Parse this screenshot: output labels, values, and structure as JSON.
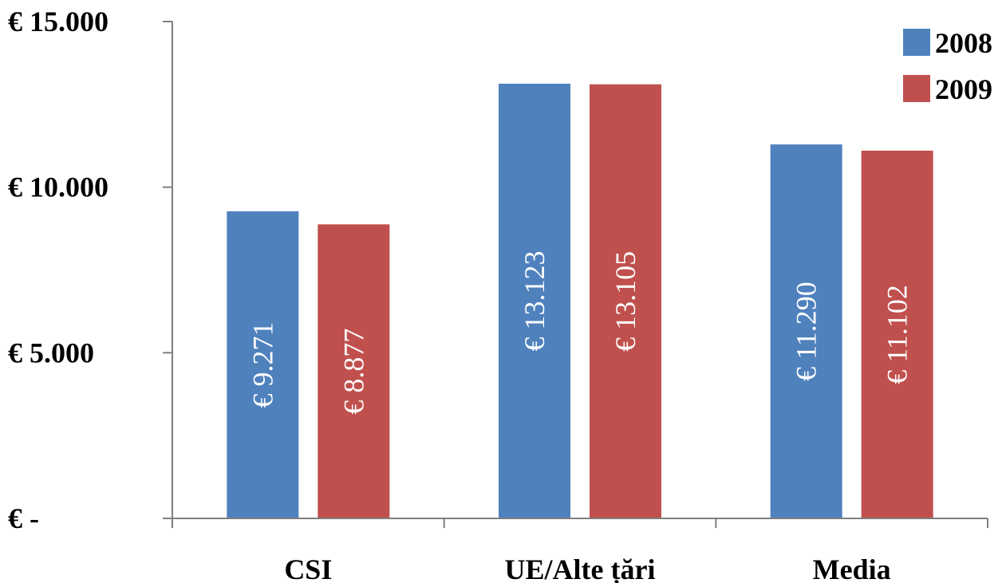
{
  "chart_data": {
    "type": "bar",
    "categories": [
      "CSI",
      "UE/Alte țări",
      "Media"
    ],
    "series": [
      {
        "name": "2008",
        "color": "#4f81bd",
        "values": [
          9271,
          13123,
          11290
        ],
        "labels": [
          "€ 9.271",
          "€ 13.123",
          "€ 11.290"
        ]
      },
      {
        "name": "2009",
        "color": "#c0504d",
        "values": [
          8877,
          13105,
          11102
        ],
        "labels": [
          "€ 8.877",
          "€ 13.105",
          "€ 11.102"
        ]
      }
    ],
    "yticks": [
      0,
      5000,
      10000,
      15000
    ],
    "ytick_labels": [
      "€ -",
      "€ 5.000",
      "€ 10.000",
      "€ 15.000"
    ],
    "ylim": [
      0,
      15000
    ],
    "grid": false,
    "legend_position": "top-right",
    "title": "",
    "xlabel": "",
    "ylabel": ""
  }
}
